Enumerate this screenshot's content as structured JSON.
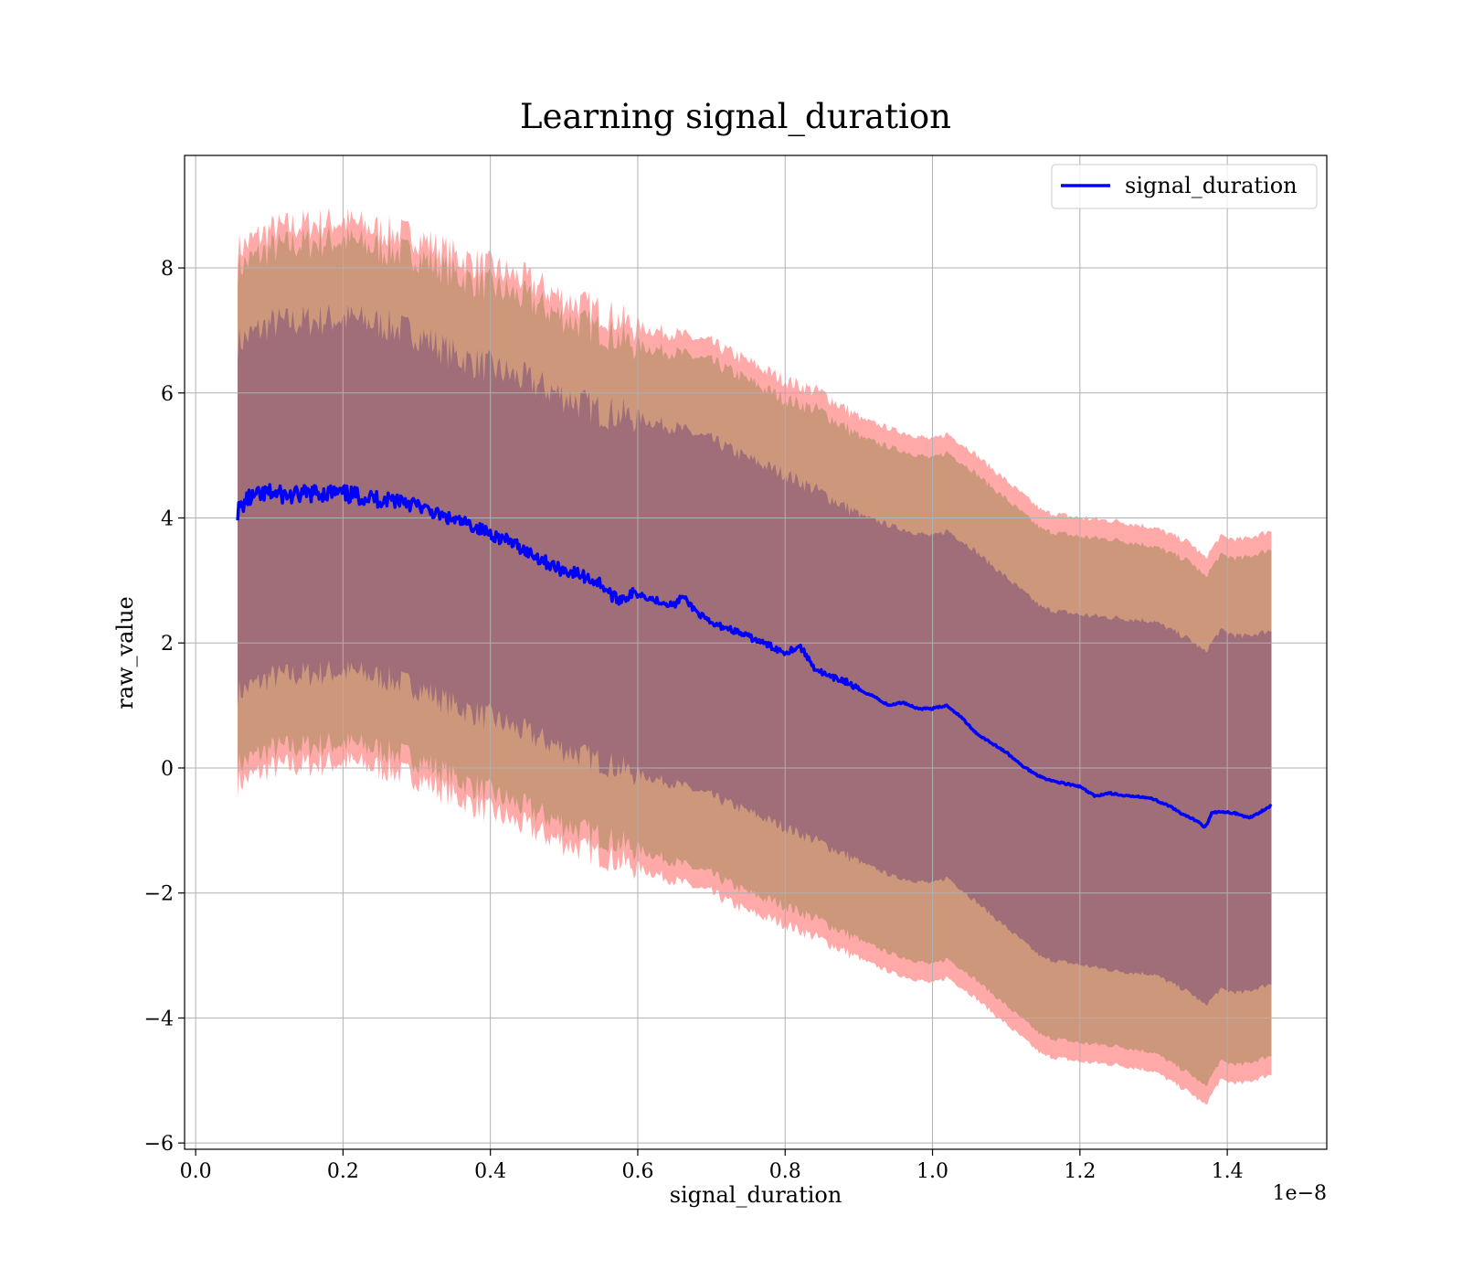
{
  "chart_data": {
    "type": "line",
    "title": "Learning signal_duration",
    "xlabel": "signal_duration",
    "ylabel": "raw_value",
    "x_offset_label": "1e−8",
    "xlim": [
      -0.015,
      1.535
    ],
    "ylim": [
      -6.1,
      9.8
    ],
    "x_ticks": [
      0.0,
      0.2,
      0.4,
      0.6,
      0.8,
      1.0,
      1.2,
      1.4
    ],
    "x_tick_labels": [
      "0.0",
      "0.2",
      "0.4",
      "0.6",
      "0.8",
      "1.0",
      "1.2",
      "1.4"
    ],
    "y_ticks": [
      -6,
      -4,
      -2,
      0,
      2,
      4,
      6,
      8
    ],
    "y_tick_labels": [
      "−6",
      "−4",
      "−2",
      "0",
      "2",
      "4",
      "6",
      "8"
    ],
    "grid": true,
    "legend_position": "top-right",
    "colors": {
      "line": "#0000ff",
      "outer_band": "#ff9a9a",
      "middle_band": "#c99678",
      "inner_band": "#a06e79",
      "grid": "#b0b0b0"
    },
    "series": [
      {
        "name": "signal_duration",
        "role": "mean",
        "x": [
          0.057,
          0.07,
          0.1,
          0.13,
          0.16,
          0.19,
          0.22,
          0.25,
          0.28,
          0.31,
          0.34,
          0.37,
          0.4,
          0.43,
          0.46,
          0.49,
          0.52,
          0.55,
          0.57,
          0.6,
          0.62,
          0.65,
          0.66,
          0.68,
          0.7,
          0.72,
          0.74,
          0.76,
          0.78,
          0.8,
          0.82,
          0.84,
          0.86,
          0.88,
          0.9,
          0.92,
          0.94,
          0.96,
          0.98,
          1.0,
          1.02,
          1.04,
          1.06,
          1.08,
          1.1,
          1.12,
          1.14,
          1.16,
          1.18,
          1.2,
          1.22,
          1.24,
          1.26,
          1.28,
          1.3,
          1.32,
          1.34,
          1.36,
          1.37,
          1.38,
          1.41,
          1.43,
          1.46
        ],
        "values": [
          4.1,
          4.3,
          4.4,
          4.35,
          4.4,
          4.4,
          4.35,
          4.3,
          4.3,
          4.15,
          4.0,
          3.9,
          3.75,
          3.6,
          3.4,
          3.2,
          3.1,
          2.95,
          2.7,
          2.8,
          2.7,
          2.6,
          2.75,
          2.5,
          2.3,
          2.25,
          2.15,
          2.05,
          1.95,
          1.85,
          1.95,
          1.6,
          1.45,
          1.4,
          1.25,
          1.15,
          1.0,
          1.05,
          0.95,
          0.95,
          1.0,
          0.8,
          0.55,
          0.4,
          0.25,
          0.05,
          -0.1,
          -0.2,
          -0.25,
          -0.3,
          -0.45,
          -0.4,
          -0.45,
          -0.45,
          -0.5,
          -0.6,
          -0.75,
          -0.85,
          -0.95,
          -0.7,
          -0.72,
          -0.8,
          -0.6
        ]
      },
      {
        "name": "",
        "role": "band",
        "x": [
          0.057,
          0.1,
          0.15,
          0.2,
          0.25,
          0.3,
          0.35,
          0.4,
          0.45,
          0.5,
          0.55,
          0.6,
          0.65,
          0.7,
          0.75,
          0.8,
          0.85,
          0.9,
          0.95,
          1.0,
          1.02,
          1.05,
          1.1,
          1.15,
          1.2,
          1.25,
          1.3,
          1.35,
          1.37,
          1.39,
          1.42,
          1.46
        ],
        "outer_upper": [
          8.3,
          8.6,
          8.7,
          8.75,
          8.6,
          8.5,
          8.2,
          8.0,
          7.8,
          7.5,
          7.3,
          7.05,
          6.95,
          6.8,
          6.5,
          6.2,
          6.0,
          5.6,
          5.4,
          5.25,
          5.35,
          5.1,
          4.6,
          4.1,
          4.0,
          3.95,
          3.85,
          3.6,
          3.35,
          3.7,
          3.65,
          3.8
        ],
        "inner_upper": [
          6.8,
          7.1,
          7.15,
          7.2,
          7.1,
          6.95,
          6.6,
          6.4,
          6.2,
          5.95,
          5.7,
          5.6,
          5.45,
          5.25,
          4.95,
          4.7,
          4.4,
          4.05,
          3.85,
          3.7,
          3.8,
          3.55,
          3.05,
          2.55,
          2.45,
          2.4,
          2.35,
          2.05,
          1.85,
          2.2,
          2.1,
          2.2
        ],
        "inner_lower": [
          1.2,
          1.45,
          1.5,
          1.55,
          1.45,
          1.3,
          1.0,
          0.8,
          0.55,
          0.3,
          0.1,
          -0.1,
          -0.25,
          -0.45,
          -0.7,
          -0.95,
          -1.2,
          -1.5,
          -1.75,
          -1.85,
          -1.75,
          -2.05,
          -2.55,
          -3.05,
          -3.15,
          -3.25,
          -3.3,
          -3.6,
          -3.8,
          -3.55,
          -3.6,
          -3.45
        ],
        "outer_lower": [
          -0.25,
          0.0,
          0.05,
          0.1,
          0.0,
          -0.15,
          -0.45,
          -0.7,
          -0.95,
          -1.2,
          -1.4,
          -1.6,
          -1.8,
          -2.0,
          -2.3,
          -2.5,
          -2.75,
          -3.05,
          -3.3,
          -3.45,
          -3.35,
          -3.6,
          -4.1,
          -4.6,
          -4.7,
          -4.75,
          -4.85,
          -5.2,
          -5.4,
          -5.0,
          -5.05,
          -4.9
        ]
      }
    ]
  }
}
